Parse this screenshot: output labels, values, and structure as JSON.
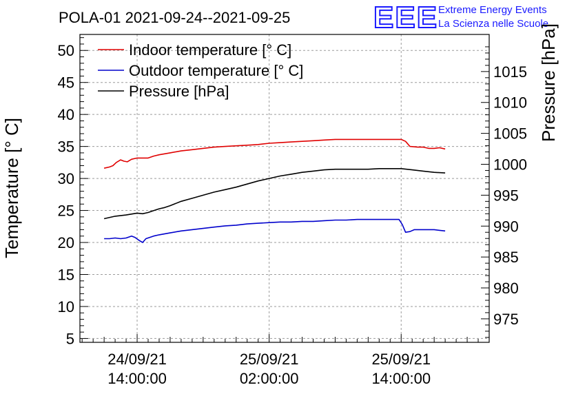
{
  "header": {
    "title": "POLA-01 2021-09-24--2021-09-25",
    "logo_mark": "EEE",
    "logo_line1": "Extreme Energy Events",
    "logo_line2": "La Scienza nelle Scuole"
  },
  "colors": {
    "indoor": "#e00000",
    "outdoor": "#0000cc",
    "pressure": "#000000",
    "logo": "#1a1aff"
  },
  "chart_data": {
    "type": "line",
    "title": "POLA-01 2021-09-24--2021-09-25",
    "ylabel": "Temperature [° C]",
    "y2label": "Pressure [hPa]",
    "xlabel": "",
    "grid": true,
    "legend_position": "top-left",
    "x_unit": "hours since 2021-09-24 00:00",
    "xlim": [
      8.8,
      46.0
    ],
    "ylim": [
      4.4,
      52.5
    ],
    "y2lim": [
      971.2,
      1021.0
    ],
    "y_ticks": [
      5,
      10,
      15,
      20,
      25,
      30,
      35,
      40,
      45,
      50
    ],
    "y2_ticks": [
      975,
      980,
      985,
      990,
      995,
      1000,
      1005,
      1010,
      1015
    ],
    "x_ticks": [
      {
        "x": 14,
        "date": "24/09/21",
        "time": "14:00:00"
      },
      {
        "x": 26,
        "date": "25/09/21",
        "time": "02:00:00"
      },
      {
        "x": 38,
        "date": "25/09/21",
        "time": "14:00:00"
      }
    ],
    "series": [
      {
        "name": "Indoor temperature [° C]",
        "axis": "left",
        "points": [
          [
            11.0,
            31.6
          ],
          [
            11.5,
            31.8
          ],
          [
            11.8,
            32.0
          ],
          [
            12.1,
            32.5
          ],
          [
            12.5,
            32.9
          ],
          [
            12.8,
            32.7
          ],
          [
            13.1,
            32.6
          ],
          [
            13.5,
            33.0
          ],
          [
            14.0,
            33.2
          ],
          [
            14.5,
            33.2
          ],
          [
            15.0,
            33.2
          ],
          [
            15.5,
            33.5
          ],
          [
            16.0,
            33.7
          ],
          [
            17.0,
            34.0
          ],
          [
            18.0,
            34.3
          ],
          [
            19.0,
            34.5
          ],
          [
            20.0,
            34.7
          ],
          [
            21.0,
            34.9
          ],
          [
            22.0,
            35.0
          ],
          [
            23.0,
            35.1
          ],
          [
            24.0,
            35.2
          ],
          [
            25.0,
            35.3
          ],
          [
            26.0,
            35.5
          ],
          [
            27.0,
            35.6
          ],
          [
            28.0,
            35.7
          ],
          [
            29.0,
            35.8
          ],
          [
            30.0,
            35.9
          ],
          [
            31.0,
            36.0
          ],
          [
            32.0,
            36.1
          ],
          [
            33.0,
            36.1
          ],
          [
            34.0,
            36.1
          ],
          [
            35.0,
            36.1
          ],
          [
            36.0,
            36.1
          ],
          [
            37.0,
            36.1
          ],
          [
            38.0,
            36.1
          ],
          [
            38.4,
            35.8
          ],
          [
            38.8,
            35.0
          ],
          [
            39.5,
            34.9
          ],
          [
            40.0,
            34.9
          ],
          [
            40.5,
            34.7
          ],
          [
            41.0,
            34.7
          ],
          [
            41.5,
            34.8
          ],
          [
            42.0,
            34.6
          ]
        ]
      },
      {
        "name": "Outdoor temperature [° C]",
        "axis": "left",
        "points": [
          [
            11.0,
            20.6
          ],
          [
            11.5,
            20.6
          ],
          [
            12.0,
            20.7
          ],
          [
            12.5,
            20.6
          ],
          [
            13.0,
            20.7
          ],
          [
            13.5,
            21.0
          ],
          [
            13.8,
            20.8
          ],
          [
            14.2,
            20.3
          ],
          [
            14.5,
            20.0
          ],
          [
            14.8,
            20.6
          ],
          [
            15.5,
            21.0
          ],
          [
            16.0,
            21.2
          ],
          [
            17.0,
            21.5
          ],
          [
            18.0,
            21.8
          ],
          [
            19.0,
            22.0
          ],
          [
            20.0,
            22.2
          ],
          [
            21.0,
            22.4
          ],
          [
            22.0,
            22.6
          ],
          [
            23.0,
            22.7
          ],
          [
            24.0,
            22.9
          ],
          [
            25.0,
            23.0
          ],
          [
            26.0,
            23.1
          ],
          [
            27.0,
            23.2
          ],
          [
            28.0,
            23.2
          ],
          [
            29.0,
            23.3
          ],
          [
            30.0,
            23.3
          ],
          [
            31.0,
            23.4
          ],
          [
            32.0,
            23.5
          ],
          [
            33.0,
            23.5
          ],
          [
            34.0,
            23.6
          ],
          [
            35.0,
            23.6
          ],
          [
            36.0,
            23.6
          ],
          [
            37.0,
            23.6
          ],
          [
            37.8,
            23.6
          ],
          [
            38.1,
            22.8
          ],
          [
            38.4,
            21.6
          ],
          [
            38.8,
            21.7
          ],
          [
            39.2,
            22.0
          ],
          [
            40.0,
            22.0
          ],
          [
            41.0,
            22.0
          ],
          [
            41.5,
            21.9
          ],
          [
            42.0,
            21.8
          ]
        ]
      },
      {
        "name": "Pressure [hPa]",
        "axis": "right",
        "points": [
          [
            11.0,
            991.2
          ],
          [
            12.0,
            991.6
          ],
          [
            13.0,
            991.8
          ],
          [
            14.0,
            992.1
          ],
          [
            14.5,
            992.0
          ],
          [
            15.0,
            992.2
          ],
          [
            15.5,
            992.5
          ],
          [
            16.0,
            992.8
          ],
          [
            16.5,
            993.0
          ],
          [
            17.0,
            993.3
          ],
          [
            18.0,
            994.0
          ],
          [
            19.0,
            994.5
          ],
          [
            20.0,
            995.0
          ],
          [
            21.0,
            995.5
          ],
          [
            22.0,
            995.9
          ],
          [
            23.0,
            996.3
          ],
          [
            24.0,
            996.8
          ],
          [
            25.0,
            997.3
          ],
          [
            26.0,
            997.7
          ],
          [
            27.0,
            998.1
          ],
          [
            28.0,
            998.4
          ],
          [
            29.0,
            998.7
          ],
          [
            30.0,
            998.9
          ],
          [
            31.0,
            999.1
          ],
          [
            32.0,
            999.2
          ],
          [
            33.0,
            999.2
          ],
          [
            34.0,
            999.2
          ],
          [
            35.0,
            999.2
          ],
          [
            36.0,
            999.3
          ],
          [
            37.0,
            999.3
          ],
          [
            38.0,
            999.3
          ],
          [
            39.0,
            999.1
          ],
          [
            40.0,
            998.9
          ],
          [
            41.0,
            998.7
          ],
          [
            42.0,
            998.6
          ]
        ]
      }
    ]
  }
}
